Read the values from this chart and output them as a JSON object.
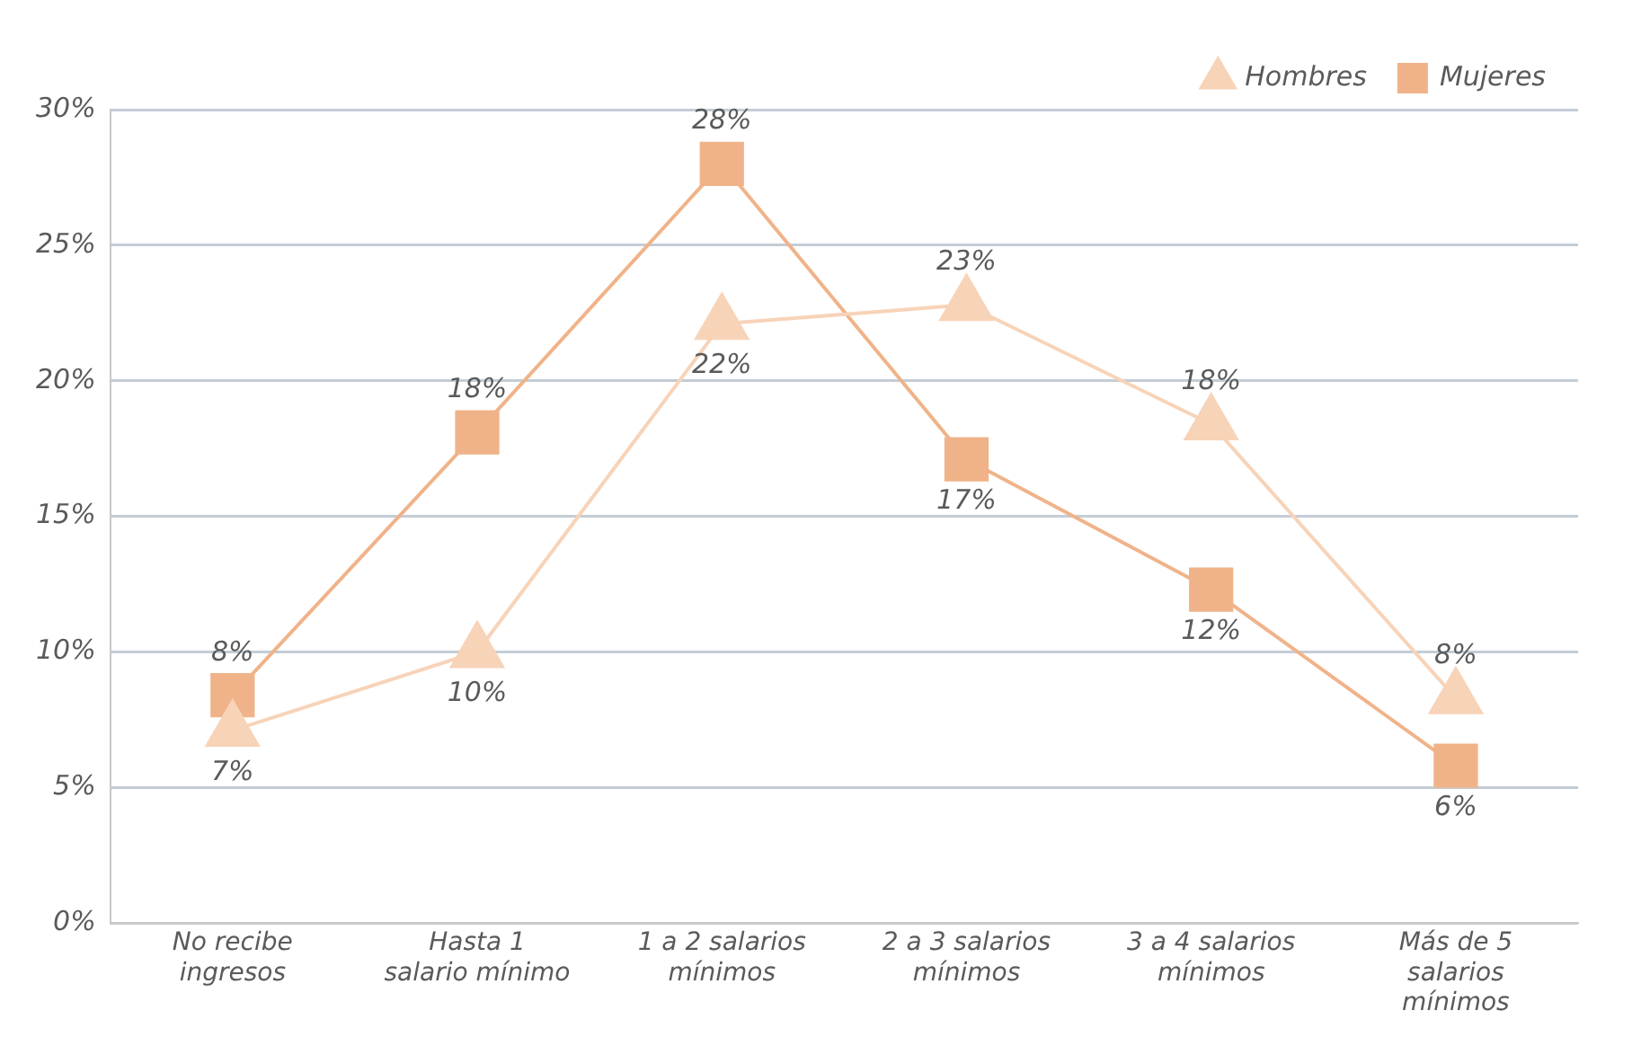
{
  "chart_data": {
    "type": "line",
    "categories": [
      "No recibe ingresos",
      "Hasta 1 salario mínimo",
      "1 a 2 salarios mínimos",
      "2 a 3 salarios mínimos",
      "3 a 4 salarios mínimos",
      "Más de 5 salarios mínimos"
    ],
    "series": [
      {
        "name": "Hombres",
        "color": "#f7d3b8",
        "marker": "triangle",
        "values": [
          7.1,
          10.0,
          22.1,
          22.8,
          18.4,
          8.3
        ],
        "value_labels": [
          "7%",
          "10%",
          "22%",
          "23%",
          "18%",
          "8%"
        ]
      },
      {
        "name": "Mujeres",
        "color": "#f0b389",
        "marker": "square",
        "values": [
          8.4,
          18.1,
          28.0,
          17.1,
          12.3,
          5.8
        ],
        "value_labels": [
          "8%",
          "18%",
          "28%",
          "17%",
          "12%",
          "6%"
        ]
      }
    ],
    "ylim": [
      0,
      30
    ],
    "yticks": [
      {
        "value": 0,
        "label": "0%"
      },
      {
        "value": 5,
        "label": "5%"
      },
      {
        "value": 10,
        "label": "10%"
      },
      {
        "value": 15,
        "label": "15%"
      },
      {
        "value": 20,
        "label": "20%"
      },
      {
        "value": 25,
        "label": "25%"
      },
      {
        "value": 30,
        "label": "30%"
      }
    ],
    "grid": "y",
    "legend": "top right",
    "line_style": "solid"
  }
}
